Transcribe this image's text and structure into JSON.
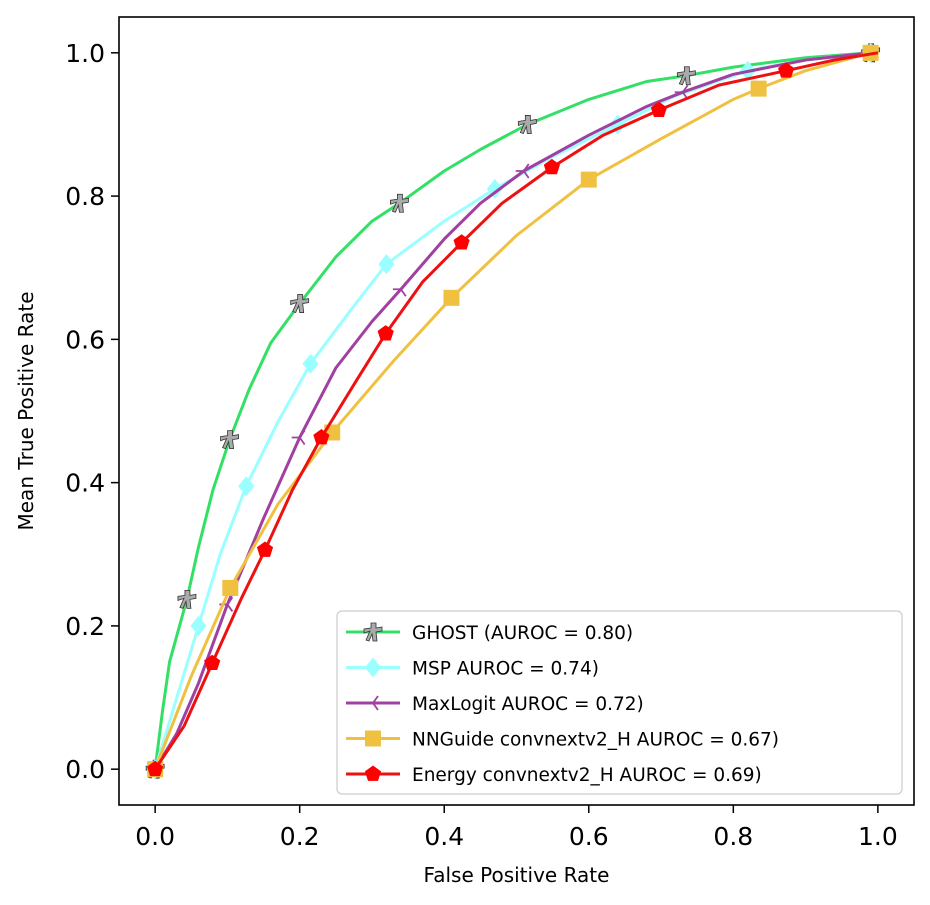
{
  "chart_data": {
    "type": "line",
    "title": "",
    "xlabel": "False Positive Rate",
    "ylabel": "Mean True Positive Rate",
    "xlim": [
      -0.05,
      1.05
    ],
    "ylim": [
      -0.05,
      1.05
    ],
    "x_ticks": [
      "0.0",
      "0.2",
      "0.4",
      "0.6",
      "0.8",
      "1.0"
    ],
    "y_ticks": [
      "0.0",
      "0.2",
      "0.4",
      "0.6",
      "0.8",
      "1.0"
    ],
    "grid": false,
    "legend_position": "lower-right",
    "series": [
      {
        "name": "GHOST (AUROC = 0.80)",
        "color": "#33e066",
        "marker": "ghost-icon",
        "marker_color": "#aaaaaa",
        "x": [
          0.0,
          0.01,
          0.02,
          0.044,
          0.06,
          0.08,
          0.103,
          0.13,
          0.16,
          0.2,
          0.25,
          0.3,
          0.338,
          0.4,
          0.45,
          0.515,
          0.6,
          0.68,
          0.735,
          0.8,
          0.9,
          0.99
        ],
        "y": [
          0.0,
          0.08,
          0.15,
          0.237,
          0.31,
          0.39,
          0.46,
          0.53,
          0.595,
          0.65,
          0.715,
          0.765,
          0.79,
          0.835,
          0.865,
          0.9,
          0.935,
          0.96,
          0.968,
          0.98,
          0.993,
          1.0
        ],
        "marker_x": [
          0.0,
          0.044,
          0.103,
          0.2,
          0.338,
          0.515,
          0.735,
          0.99
        ],
        "marker_y": [
          0.0,
          0.237,
          0.46,
          0.65,
          0.79,
          0.9,
          0.968,
          1.0
        ]
      },
      {
        "name": "MSP  AUROC = 0.74)",
        "color": "#99ffff",
        "marker": "diamond",
        "marker_color": "#99ffff",
        "x": [
          0.0,
          0.03,
          0.06,
          0.09,
          0.126,
          0.17,
          0.215,
          0.27,
          0.32,
          0.4,
          0.47,
          0.55,
          0.64,
          0.72,
          0.82,
          0.9,
          0.99
        ],
        "y": [
          0.0,
          0.1,
          0.2,
          0.3,
          0.395,
          0.485,
          0.566,
          0.64,
          0.705,
          0.765,
          0.81,
          0.855,
          0.9,
          0.94,
          0.975,
          0.99,
          1.0
        ],
        "marker_x": [
          0.0,
          0.06,
          0.126,
          0.215,
          0.32,
          0.47,
          0.64,
          0.82,
          0.99
        ],
        "marker_y": [
          0.0,
          0.2,
          0.395,
          0.566,
          0.705,
          0.81,
          0.9,
          0.975,
          1.0
        ]
      },
      {
        "name": "MaxLogit  AUROC = 0.72)",
        "color": "#a040a0",
        "marker": "tri-left",
        "marker_color": "#a040a0",
        "x": [
          0.0,
          0.03,
          0.06,
          0.1,
          0.15,
          0.2,
          0.25,
          0.3,
          0.34,
          0.4,
          0.45,
          0.51,
          0.6,
          0.68,
          0.73,
          0.8,
          0.9,
          0.99
        ],
        "y": [
          0.0,
          0.05,
          0.12,
          0.23,
          0.35,
          0.463,
          0.56,
          0.625,
          0.67,
          0.74,
          0.79,
          0.835,
          0.885,
          0.925,
          0.945,
          0.97,
          0.99,
          1.0
        ],
        "marker_x": [
          0.0,
          0.1,
          0.2,
          0.34,
          0.51,
          0.73,
          0.99
        ],
        "marker_y": [
          0.0,
          0.23,
          0.463,
          0.67,
          0.835,
          0.945,
          1.0
        ]
      },
      {
        "name": "NNGuide convnextv2_H  AUROC = 0.67)",
        "color": "#f0c040",
        "marker": "square",
        "marker_color": "#f0c040",
        "x": [
          0.0,
          0.05,
          0.104,
          0.17,
          0.245,
          0.33,
          0.41,
          0.5,
          0.6,
          0.7,
          0.8,
          0.835,
          0.9,
          0.99
        ],
        "y": [
          0.0,
          0.13,
          0.253,
          0.37,
          0.47,
          0.57,
          0.658,
          0.745,
          0.823,
          0.88,
          0.935,
          0.95,
          0.975,
          1.0
        ],
        "marker_x": [
          0.0,
          0.104,
          0.245,
          0.41,
          0.6,
          0.835,
          0.99
        ],
        "marker_y": [
          0.0,
          0.253,
          0.47,
          0.658,
          0.823,
          0.95,
          1.0
        ]
      },
      {
        "name": "Energy convnextv2_H  AUROC = 0.69)",
        "color": "#ee1111",
        "marker": "pentagon",
        "marker_color": "#ff0000",
        "x": [
          0.0,
          0.04,
          0.079,
          0.12,
          0.152,
          0.19,
          0.23,
          0.28,
          0.319,
          0.37,
          0.424,
          0.48,
          0.549,
          0.62,
          0.697,
          0.78,
          0.873,
          0.94,
          1.0
        ],
        "y": [
          0.0,
          0.06,
          0.148,
          0.24,
          0.306,
          0.39,
          0.463,
          0.545,
          0.608,
          0.68,
          0.735,
          0.79,
          0.84,
          0.885,
          0.92,
          0.955,
          0.975,
          0.99,
          1.0
        ],
        "marker_x": [
          0.0,
          0.079,
          0.152,
          0.23,
          0.319,
          0.424,
          0.549,
          0.697,
          0.873
        ],
        "marker_y": [
          0.0,
          0.148,
          0.306,
          0.463,
          0.608,
          0.735,
          0.84,
          0.92,
          0.975
        ]
      }
    ]
  }
}
